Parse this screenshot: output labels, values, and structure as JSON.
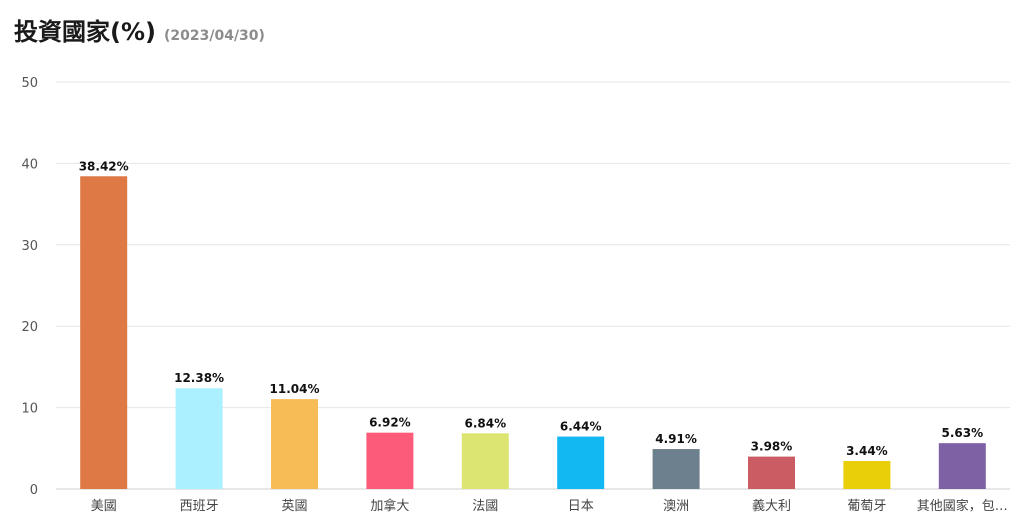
{
  "header": {
    "title": "投資國家(%)",
    "date": "(2023/04/30)"
  },
  "chart_data": {
    "type": "bar",
    "categories": [
      "美國",
      "西班牙",
      "英國",
      "加拿大",
      "法國",
      "日本",
      "澳洲",
      "義大利",
      "葡萄牙",
      "其他國家，包…"
    ],
    "values": [
      38.42,
      12.38,
      11.04,
      6.92,
      6.84,
      6.44,
      4.91,
      3.98,
      3.44,
      5.63
    ],
    "data_labels": [
      "38.42%",
      "12.38%",
      "11.04%",
      "6.92%",
      "6.84%",
      "6.44%",
      "4.91%",
      "3.98%",
      "3.44%",
      "5.63%"
    ],
    "colors": [
      "#de7844",
      "#aaf0fe",
      "#f8bc56",
      "#fd5b7a",
      "#dce472",
      "#12b8f2",
      "#6d808e",
      "#cc5c63",
      "#e9cf0a",
      "#7e60a5"
    ],
    "ylim": [
      0,
      50
    ],
    "yticks": [
      0,
      10,
      20,
      30,
      40,
      50
    ],
    "grid": true
  }
}
